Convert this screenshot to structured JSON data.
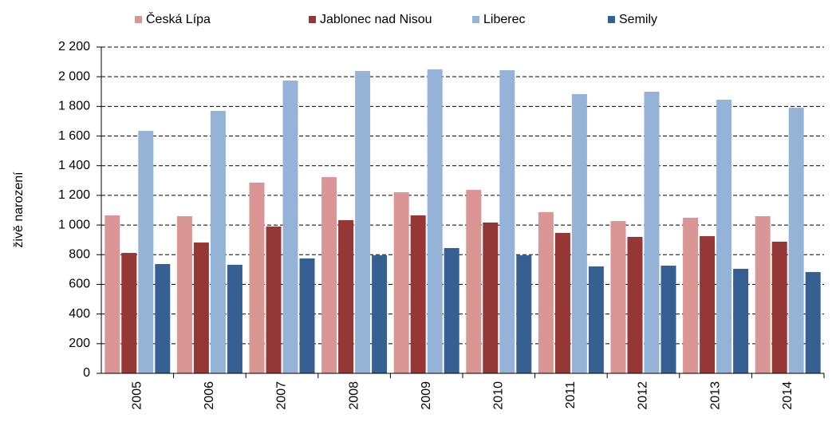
{
  "chart_data": {
    "type": "bar",
    "y_label": "živě narození",
    "categories": [
      "2005",
      "2006",
      "2007",
      "2008",
      "2009",
      "2010",
      "2011",
      "2012",
      "2013",
      "2014"
    ],
    "series": [
      {
        "name": "Česká Lípa",
        "color": "#d99694",
        "values": [
          1065,
          1060,
          1286,
          1323,
          1221,
          1237,
          1087,
          1027,
          1049,
          1060
        ]
      },
      {
        "name": "Jablonec nad Nisou",
        "color": "#953735",
        "values": [
          812,
          882,
          990,
          1033,
          1065,
          1017,
          947,
          920,
          925,
          888
        ]
      },
      {
        "name": "Liberec",
        "color": "#95b3d7",
        "values": [
          1635,
          1770,
          1974,
          2039,
          2050,
          2044,
          1883,
          1899,
          1845,
          1791
        ]
      },
      {
        "name": "Semily",
        "color": "#376092",
        "values": [
          737,
          732,
          775,
          796,
          845,
          796,
          721,
          726,
          705,
          683
        ]
      }
    ],
    "ylim": [
      0,
      2200
    ],
    "yticks": [
      0,
      200,
      400,
      600,
      800,
      {
        "value": 1000,
        "label": "1 000"
      },
      {
        "value": 1200,
        "label": "1 200"
      },
      {
        "value": 1400,
        "label": "1 400"
      },
      {
        "value": 1600,
        "label": "1 600"
      },
      {
        "value": 1800,
        "label": "1 800"
      },
      {
        "value": 2000,
        "label": "2 000"
      },
      {
        "value": 2200,
        "label": "2 200"
      }
    ],
    "grid": true,
    "legend": "top"
  }
}
